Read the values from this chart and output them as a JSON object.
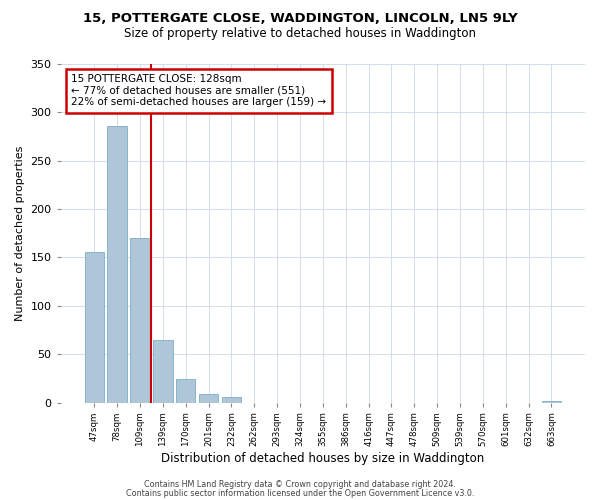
{
  "title": "15, POTTERGATE CLOSE, WADDINGTON, LINCOLN, LN5 9LY",
  "subtitle": "Size of property relative to detached houses in Waddington",
  "xlabel": "Distribution of detached houses by size in Waddington",
  "ylabel": "Number of detached properties",
  "bar_labels": [
    "47sqm",
    "78sqm",
    "109sqm",
    "139sqm",
    "170sqm",
    "201sqm",
    "232sqm",
    "262sqm",
    "293sqm",
    "324sqm",
    "355sqm",
    "386sqm",
    "416sqm",
    "447sqm",
    "478sqm",
    "509sqm",
    "539sqm",
    "570sqm",
    "601sqm",
    "632sqm",
    "663sqm"
  ],
  "bar_heights": [
    156,
    286,
    170,
    65,
    24,
    9,
    6,
    0,
    0,
    0,
    0,
    0,
    0,
    0,
    0,
    0,
    0,
    0,
    0,
    0,
    2
  ],
  "bar_color": "#aec6d8",
  "bar_edge_color": "#7aaec8",
  "vline_color": "#cc0000",
  "annotation_title": "15 POTTERGATE CLOSE: 128sqm",
  "annotation_line1": "← 77% of detached houses are smaller (551)",
  "annotation_line2": "22% of semi-detached houses are larger (159) →",
  "annotation_box_color": "#ffffff",
  "annotation_border_color": "#cc0000",
  "ylim": [
    0,
    350
  ],
  "yticks": [
    0,
    50,
    100,
    150,
    200,
    250,
    300,
    350
  ],
  "footer1": "Contains HM Land Registry data © Crown copyright and database right 2024.",
  "footer2": "Contains public sector information licensed under the Open Government Licence v3.0.",
  "background_color": "#ffffff",
  "grid_color": "#ccd9e8"
}
